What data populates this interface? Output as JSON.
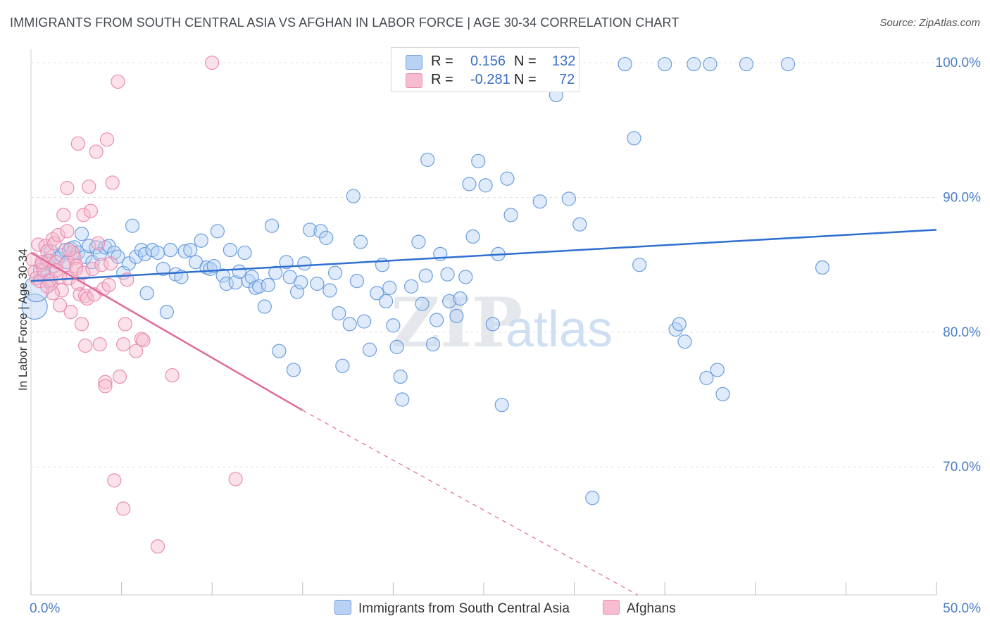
{
  "title": "IMMIGRANTS FROM SOUTH CENTRAL ASIA VS AFGHAN IN LABOR FORCE | AGE 30-34 CORRELATION CHART",
  "source": "Source: ZipAtlas.com",
  "watermark": {
    "zip": "ZIP",
    "atlas": "atlas"
  },
  "colors": {
    "blue": "#2f6fd0",
    "blue_fill": "#b9d2f3",
    "pink": "#e06a98",
    "pink_fill": "#f6bdd1",
    "tick_label": "#4a7cc7",
    "grid": "#e3e3e3"
  },
  "legend": {
    "rows": [
      {
        "r_label": "R =",
        "r_value": "0.156",
        "n_label": "N =",
        "n_value": "132"
      },
      {
        "r_label": "R =",
        "r_value": "-0.281",
        "n_label": "N =",
        "n_value": "72"
      }
    ]
  },
  "chart_data": {
    "type": "scatter",
    "title": "IMMIGRANTS FROM SOUTH CENTRAL ASIA VS AFGHAN IN LABOR FORCE | AGE 30-34 CORRELATION CHART",
    "xlabel": "",
    "ylabel": "In Labor Force | Age 30-34",
    "xlim": [
      0,
      50
    ],
    "ylim": [
      60.5,
      101
    ],
    "x_tick_labels": [
      {
        "value": 0,
        "label": "0.0%"
      },
      {
        "value": 50,
        "label": "50.0%"
      }
    ],
    "y_ticks": [
      {
        "value": 70,
        "label": "70.0%"
      },
      {
        "value": 80,
        "label": "80.0%"
      },
      {
        "value": 90,
        "label": "90.0%"
      },
      {
        "value": 100,
        "label": "100.0%"
      }
    ],
    "x_minor_ticks": [
      0,
      5,
      10,
      15,
      20,
      25,
      30,
      35,
      40,
      45,
      50
    ],
    "grid": true,
    "legend_position": "bottom-center",
    "series": [
      {
        "name": "Immigrants from South Central Asia",
        "color": "#2f6fd0",
        "trend": {
          "x": [
            0,
            50
          ],
          "y": [
            83.8,
            87.6
          ],
          "style": "solid"
        },
        "points": [
          [
            0.2,
            81.9
          ],
          [
            0.3,
            83.2
          ],
          [
            0.5,
            84.6
          ],
          [
            0.7,
            84.2
          ],
          [
            0.9,
            85.3
          ],
          [
            1.0,
            83.8
          ],
          [
            1.1,
            86.0
          ],
          [
            1.3,
            84.9
          ],
          [
            1.5,
            85.5
          ],
          [
            1.7,
            85.7
          ],
          [
            1.9,
            86.1
          ],
          [
            2.0,
            85.2
          ],
          [
            2.2,
            86.2
          ],
          [
            2.4,
            86.3
          ],
          [
            2.6,
            85.9
          ],
          [
            2.8,
            87.3
          ],
          [
            3.0,
            85.6
          ],
          [
            3.2,
            86.4
          ],
          [
            3.4,
            85.2
          ],
          [
            3.6,
            86.3
          ],
          [
            3.8,
            85.8
          ],
          [
            4.1,
            86.3
          ],
          [
            4.3,
            86.4
          ],
          [
            4.6,
            85.9
          ],
          [
            4.8,
            85.6
          ],
          [
            5.1,
            84.4
          ],
          [
            5.4,
            85.1
          ],
          [
            5.6,
            87.9
          ],
          [
            5.8,
            85.6
          ],
          [
            6.1,
            86.1
          ],
          [
            6.3,
            85.8
          ],
          [
            6.4,
            82.9
          ],
          [
            6.7,
            86.1
          ],
          [
            7.0,
            85.9
          ],
          [
            7.3,
            84.7
          ],
          [
            7.5,
            81.5
          ],
          [
            7.7,
            86.1
          ],
          [
            8.0,
            84.3
          ],
          [
            8.3,
            84.1
          ],
          [
            8.5,
            86.0
          ],
          [
            8.8,
            86.1
          ],
          [
            9.1,
            85.2
          ],
          [
            9.4,
            86.8
          ],
          [
            9.7,
            84.8
          ],
          [
            9.9,
            84.7
          ],
          [
            10.1,
            84.9
          ],
          [
            10.3,
            87.5
          ],
          [
            10.6,
            84.2
          ],
          [
            10.8,
            83.6
          ],
          [
            11.0,
            86.1
          ],
          [
            11.3,
            83.7
          ],
          [
            11.5,
            84.5
          ],
          [
            11.8,
            85.9
          ],
          [
            12.0,
            83.8
          ],
          [
            12.2,
            84.1
          ],
          [
            12.4,
            83.3
          ],
          [
            12.6,
            83.4
          ],
          [
            12.9,
            81.9
          ],
          [
            13.1,
            83.5
          ],
          [
            13.3,
            87.9
          ],
          [
            13.5,
            84.4
          ],
          [
            13.7,
            78.6
          ],
          [
            14.1,
            85.2
          ],
          [
            14.3,
            84.1
          ],
          [
            14.5,
            77.2
          ],
          [
            14.7,
            83.0
          ],
          [
            14.9,
            83.7
          ],
          [
            15.1,
            85.1
          ],
          [
            15.4,
            87.6
          ],
          [
            15.8,
            83.6
          ],
          [
            16.0,
            87.5
          ],
          [
            16.3,
            87.0
          ],
          [
            16.5,
            83.1
          ],
          [
            16.8,
            84.4
          ],
          [
            17.0,
            81.4
          ],
          [
            17.2,
            77.5
          ],
          [
            17.6,
            80.6
          ],
          [
            17.8,
            90.1
          ],
          [
            18.0,
            83.8
          ],
          [
            18.2,
            86.7
          ],
          [
            18.4,
            80.8
          ],
          [
            18.7,
            78.7
          ],
          [
            19.1,
            82.9
          ],
          [
            19.4,
            85.0
          ],
          [
            19.6,
            82.3
          ],
          [
            19.8,
            83.3
          ],
          [
            20.0,
            80.5
          ],
          [
            20.2,
            78.9
          ],
          [
            20.4,
            76.7
          ],
          [
            20.5,
            75.0
          ],
          [
            21.0,
            83.4
          ],
          [
            21.4,
            86.7
          ],
          [
            21.6,
            82.1
          ],
          [
            21.8,
            84.2
          ],
          [
            21.9,
            92.8
          ],
          [
            22.2,
            79.1
          ],
          [
            22.4,
            80.9
          ],
          [
            22.6,
            85.8
          ],
          [
            23.0,
            84.3
          ],
          [
            23.1,
            82.3
          ],
          [
            23.5,
            81.2
          ],
          [
            23.7,
            82.5
          ],
          [
            24.0,
            84.1
          ],
          [
            24.2,
            91.0
          ],
          [
            24.4,
            87.1
          ],
          [
            24.7,
            92.7
          ],
          [
            25.1,
            90.9
          ],
          [
            25.5,
            80.6
          ],
          [
            25.8,
            85.8
          ],
          [
            26.0,
            74.6
          ],
          [
            26.3,
            91.4
          ],
          [
            26.5,
            88.7
          ],
          [
            28.1,
            89.7
          ],
          [
            29.0,
            97.6
          ],
          [
            29.7,
            89.9
          ],
          [
            30.3,
            88.0
          ],
          [
            31.0,
            67.7
          ],
          [
            32.8,
            99.9
          ],
          [
            33.3,
            94.4
          ],
          [
            33.6,
            85.0
          ],
          [
            35.0,
            99.9
          ],
          [
            35.6,
            80.2
          ],
          [
            35.8,
            80.6
          ],
          [
            36.1,
            79.3
          ],
          [
            36.6,
            99.9
          ],
          [
            37.3,
            76.6
          ],
          [
            37.5,
            99.9
          ],
          [
            37.9,
            77.2
          ],
          [
            38.2,
            75.4
          ],
          [
            39.5,
            99.9
          ],
          [
            41.8,
            99.9
          ],
          [
            43.7,
            84.8
          ]
        ]
      },
      {
        "name": "Afghans",
        "color": "#e06a98",
        "trend": {
          "x": [
            0,
            15
          ],
          "y": [
            85.9,
            74.2
          ],
          "dashed_to": [
            33.5,
            60.5
          ]
        },
        "points": [
          [
            0.1,
            85.4
          ],
          [
            0.2,
            84.5
          ],
          [
            0.3,
            84.0
          ],
          [
            0.4,
            86.5
          ],
          [
            0.5,
            83.8
          ],
          [
            0.6,
            85.0
          ],
          [
            0.7,
            84.6
          ],
          [
            0.8,
            86.4
          ],
          [
            0.9,
            86.0
          ],
          [
            1.0,
            85.3
          ],
          [
            1.1,
            83.6
          ],
          [
            1.1,
            83.9
          ],
          [
            1.2,
            86.9
          ],
          [
            1.3,
            86.6
          ],
          [
            1.4,
            85.2
          ],
          [
            1.5,
            87.2
          ],
          [
            1.6,
            84.1
          ],
          [
            1.7,
            83.1
          ],
          [
            1.8,
            88.7
          ],
          [
            1.9,
            85.0
          ],
          [
            2.0,
            87.5
          ],
          [
            2.0,
            90.7
          ],
          [
            2.1,
            84.0
          ],
          [
            2.2,
            81.5
          ],
          [
            2.3,
            85.9
          ],
          [
            2.4,
            85.5
          ],
          [
            2.5,
            84.9
          ],
          [
            2.5,
            84.7
          ],
          [
            2.6,
            83.6
          ],
          [
            2.6,
            94.0
          ],
          [
            2.7,
            82.8
          ],
          [
            2.8,
            80.6
          ],
          [
            2.9,
            84.4
          ],
          [
            2.9,
            88.7
          ],
          [
            3.0,
            82.7
          ],
          [
            3.1,
            82.5
          ],
          [
            3.2,
            90.8
          ],
          [
            3.3,
            89.0
          ],
          [
            3.4,
            84.7
          ],
          [
            3.5,
            82.8
          ],
          [
            3.6,
            93.4
          ],
          [
            3.7,
            86.6
          ],
          [
            3.8,
            79.1
          ],
          [
            3.9,
            85.0
          ],
          [
            4.0,
            83.2
          ],
          [
            4.1,
            76.3
          ],
          [
            4.1,
            76.0
          ],
          [
            4.2,
            94.3
          ],
          [
            4.3,
            83.5
          ],
          [
            4.4,
            85.1
          ],
          [
            4.5,
            91.1
          ],
          [
            4.6,
            69.0
          ],
          [
            4.8,
            98.6
          ],
          [
            4.9,
            76.7
          ],
          [
            5.1,
            79.1
          ],
          [
            5.1,
            66.9
          ],
          [
            5.2,
            80.6
          ],
          [
            5.3,
            83.9
          ],
          [
            5.8,
            78.6
          ],
          [
            6.1,
            79.5
          ],
          [
            6.2,
            79.4
          ],
          [
            7.0,
            64.1
          ],
          [
            7.8,
            76.8
          ],
          [
            10.0,
            100.0
          ],
          [
            11.3,
            69.1
          ],
          [
            1.2,
            82.9
          ],
          [
            0.9,
            83.4
          ],
          [
            1.6,
            82.0
          ],
          [
            0.6,
            85.2
          ],
          [
            2.1,
            86.1
          ],
          [
            3.0,
            79.0
          ],
          [
            1.4,
            84.6
          ]
        ]
      }
    ]
  },
  "bottom_legend": [
    "Immigrants from South Central Asia",
    "Afghans"
  ]
}
